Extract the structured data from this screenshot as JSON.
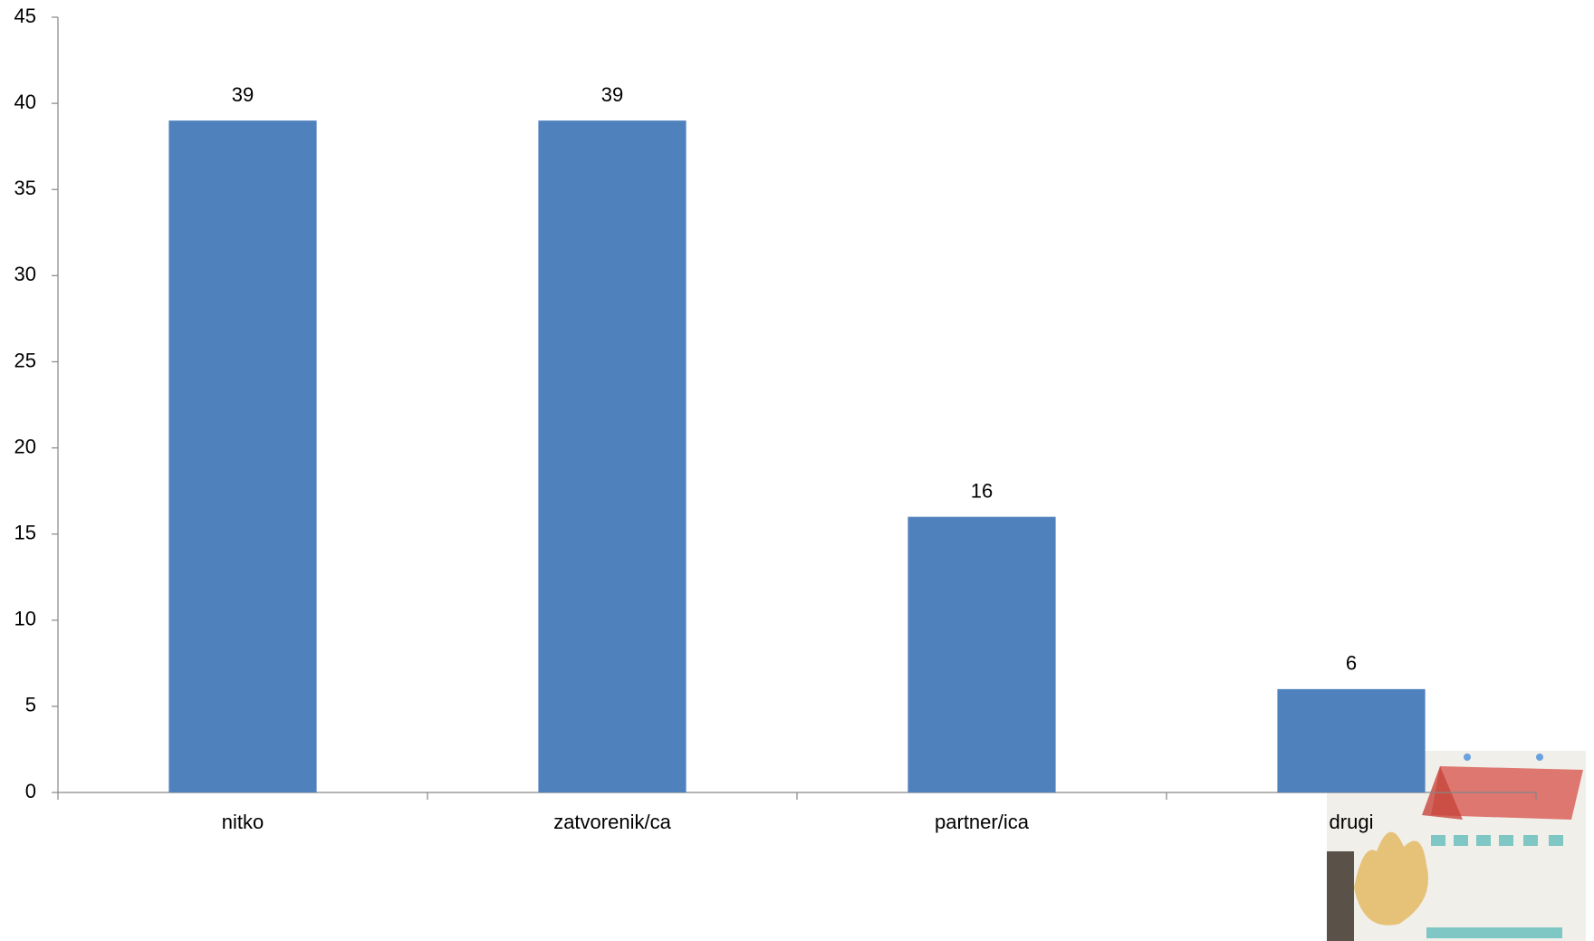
{
  "chart_data": {
    "type": "bar",
    "categories": [
      "nitko",
      "zatvorenik/ca",
      "partner/ica",
      "drugi"
    ],
    "values": [
      39,
      39,
      16,
      6
    ],
    "color": "#4f81bd",
    "ylim": [
      0,
      45
    ],
    "yticks": [
      0,
      5,
      10,
      15,
      20,
      25,
      30,
      35,
      40,
      45
    ],
    "grid": false
  }
}
